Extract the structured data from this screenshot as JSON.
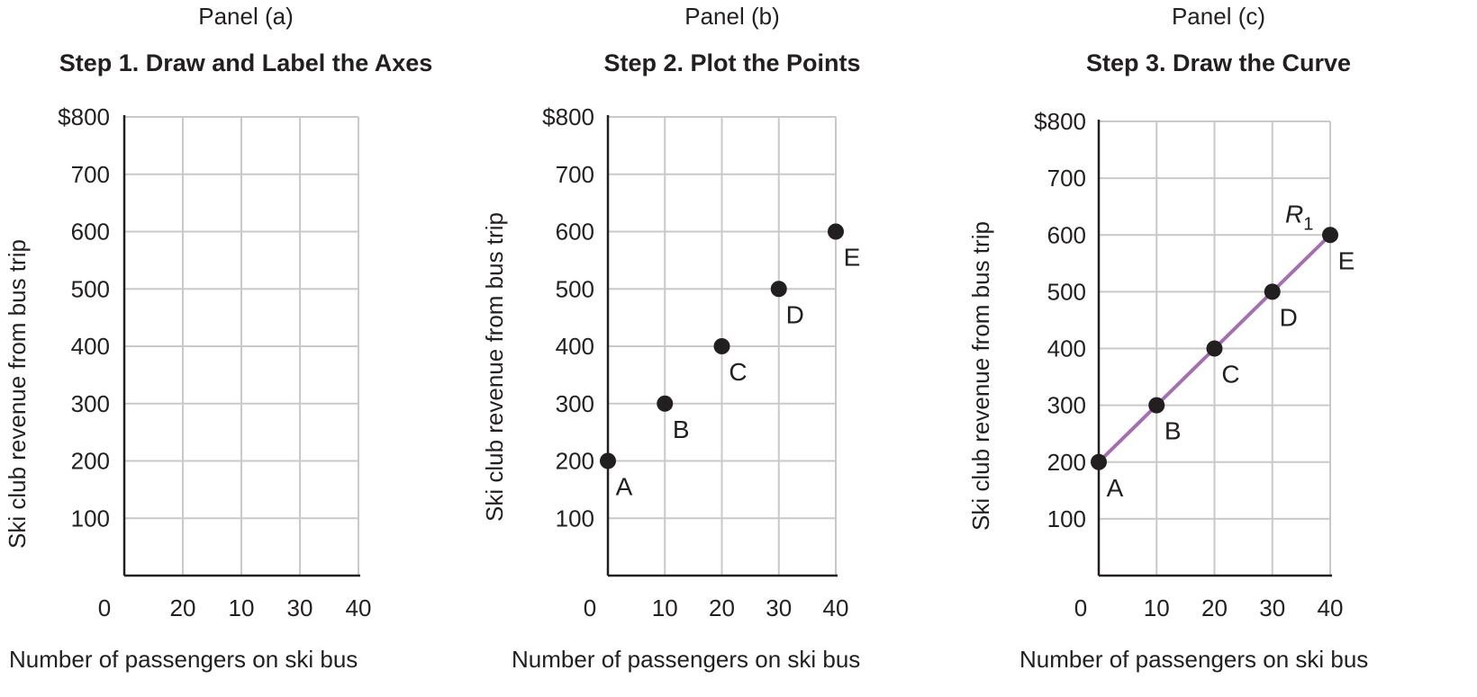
{
  "chart_data": [
    {
      "type": "table",
      "panel_label": "Panel (a)",
      "title": "Step 1. Draw and Label the Axes",
      "xlabel": "Number of passengers on ski bus",
      "ylabel": "Ski club revenue from bus trip",
      "origin_label": "0",
      "x_ticks": [
        "20",
        "10",
        "30",
        "40"
      ],
      "y_ticks": [
        "$800",
        "700",
        "600",
        "500",
        "400",
        "300",
        "200",
        "100"
      ],
      "xlim": [
        0,
        40
      ],
      "ylim": [
        0,
        800
      ],
      "grid": true,
      "points": [],
      "line": false,
      "colors": {
        "grid": "#c9c9c9",
        "axis": "#231f20"
      }
    },
    {
      "type": "scatter",
      "panel_label": "Panel (b)",
      "title": "Step 2. Plot the Points",
      "xlabel": "Number of passengers on ski bus",
      "ylabel": "Ski club revenue from bus trip",
      "origin_label": "0",
      "x_ticks": [
        "10",
        "20",
        "30",
        "40"
      ],
      "y_ticks": [
        "$800",
        "700",
        "600",
        "500",
        "400",
        "300",
        "200",
        "100"
      ],
      "xlim": [
        0,
        40
      ],
      "ylim": [
        0,
        800
      ],
      "grid": true,
      "points": [
        {
          "label": "A",
          "x": 0,
          "y": 200
        },
        {
          "label": "B",
          "x": 10,
          "y": 300
        },
        {
          "label": "C",
          "x": 20,
          "y": 400
        },
        {
          "label": "D",
          "x": 30,
          "y": 500
        },
        {
          "label": "E",
          "x": 40,
          "y": 600
        }
      ],
      "line": false,
      "colors": {
        "grid": "#c9c9c9",
        "axis": "#231f20",
        "point": "#231f20"
      }
    },
    {
      "type": "line",
      "panel_label": "Panel (c)",
      "title": "Step 3. Draw the Curve",
      "xlabel": "Number of passengers on ski bus",
      "ylabel": "Ski club revenue from bus trip",
      "origin_label": "0",
      "x_ticks": [
        "10",
        "20",
        "30",
        "40"
      ],
      "y_ticks": [
        "$800",
        "700",
        "600",
        "500",
        "400",
        "300",
        "200",
        "100"
      ],
      "xlim": [
        0,
        40
      ],
      "ylim": [
        0,
        800
      ],
      "grid": true,
      "points": [
        {
          "label": "A",
          "x": 0,
          "y": 200
        },
        {
          "label": "B",
          "x": 10,
          "y": 300
        },
        {
          "label": "C",
          "x": 20,
          "y": 400
        },
        {
          "label": "D",
          "x": 30,
          "y": 500
        },
        {
          "label": "E",
          "x": 40,
          "y": 600
        }
      ],
      "line": true,
      "curve_label": {
        "main": "R",
        "sub": "1"
      },
      "colors": {
        "grid": "#c9c9c9",
        "axis": "#231f20",
        "point": "#231f20",
        "line": "#a36fb2"
      }
    }
  ]
}
